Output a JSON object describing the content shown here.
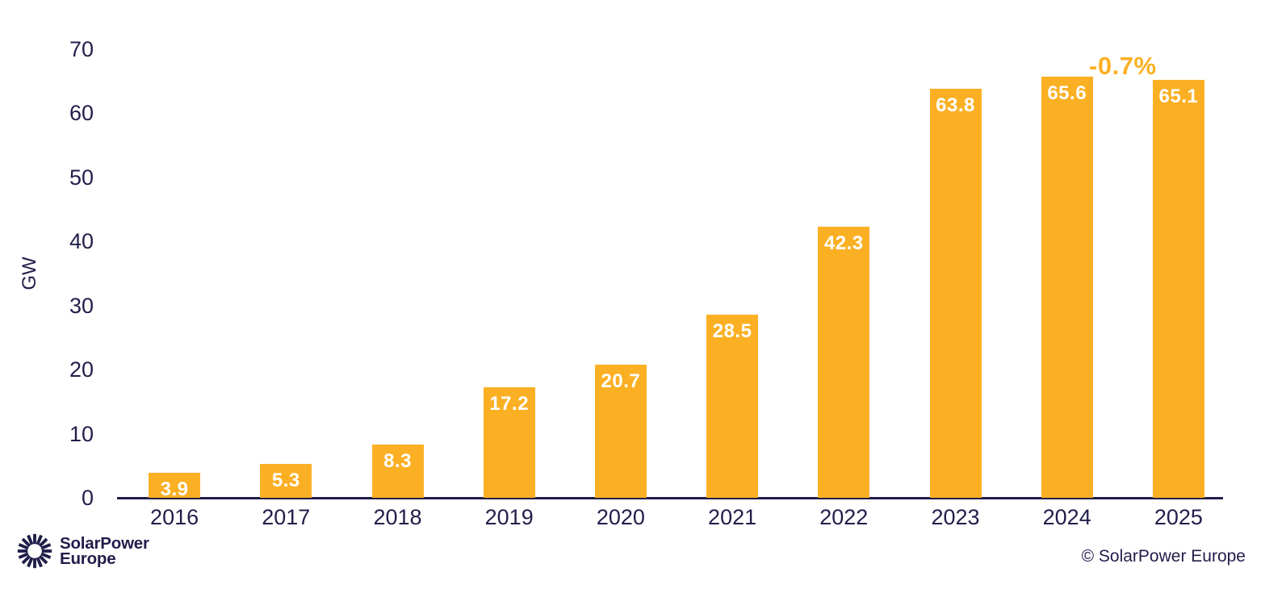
{
  "chart_data": {
    "type": "bar",
    "title": "",
    "categories": [
      "2016",
      "2017",
      "2018",
      "2019",
      "2020",
      "2021",
      "2022",
      "2023",
      "2024",
      "2025"
    ],
    "values": [
      3.9,
      5.3,
      8.3,
      17.2,
      20.7,
      28.5,
      42.3,
      63.8,
      65.6,
      65.1
    ],
    "value_labels": [
      "3.9",
      "5.3",
      "8.3",
      "17.2",
      "20.7",
      "28.5",
      "42.3",
      "63.8",
      "65.6",
      "65.1"
    ],
    "xlabel": "",
    "ylabel": "GW",
    "ylim": [
      0,
      70
    ],
    "yticks": [
      0,
      10,
      20,
      30,
      40,
      50,
      60,
      70
    ],
    "grid": false,
    "legend": null,
    "bar_color": "#FBB024",
    "bar_label_color": "#FFFFFF",
    "axis_text_color": "#211E4A",
    "annotation": {
      "text": "-0.7%",
      "color": "#FBB024",
      "anchor_categories": [
        "2024",
        "2025"
      ]
    }
  },
  "footer": {
    "logo_line1": "SolarPower",
    "logo_line2": "Europe",
    "logo_icon": "sunburst-icon",
    "logo_color": "#211E4A",
    "copyright": "© SolarPower Europe"
  }
}
